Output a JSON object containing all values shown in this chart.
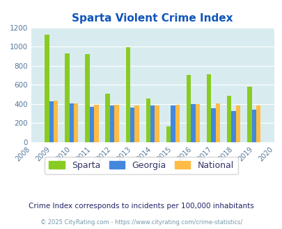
{
  "title": "Sparta Violent Crime Index",
  "years": [
    2008,
    2009,
    2010,
    2011,
    2012,
    2013,
    2014,
    2015,
    2016,
    2017,
    2018,
    2019,
    2020
  ],
  "bar_years": [
    2009,
    2010,
    2011,
    2012,
    2013,
    2014,
    2015,
    2016,
    2017,
    2018,
    2019
  ],
  "sparta": [
    1125,
    925,
    920,
    505,
    990,
    455,
    162,
    703,
    710,
    487,
    580
  ],
  "georgia": [
    425,
    402,
    370,
    380,
    362,
    382,
    380,
    395,
    355,
    322,
    338
  ],
  "national": [
    433,
    403,
    388,
    391,
    381,
    384,
    393,
    400,
    401,
    380,
    380
  ],
  "sparta_color": "#88cc22",
  "georgia_color": "#4488dd",
  "national_color": "#ffbb44",
  "bg_color": "#d8ecf0",
  "title_color": "#1155bb",
  "subtitle": "Crime Index corresponds to incidents per 100,000 inhabitants",
  "subtitle_color": "#222266",
  "footnote": "© 2025 CityRating.com - https://www.cityrating.com/crime-statistics/",
  "footnote_color": "#7799aa",
  "ylim": [
    0,
    1200
  ],
  "yticks": [
    0,
    200,
    400,
    600,
    800,
    1000,
    1200
  ],
  "bar_width": 0.22
}
